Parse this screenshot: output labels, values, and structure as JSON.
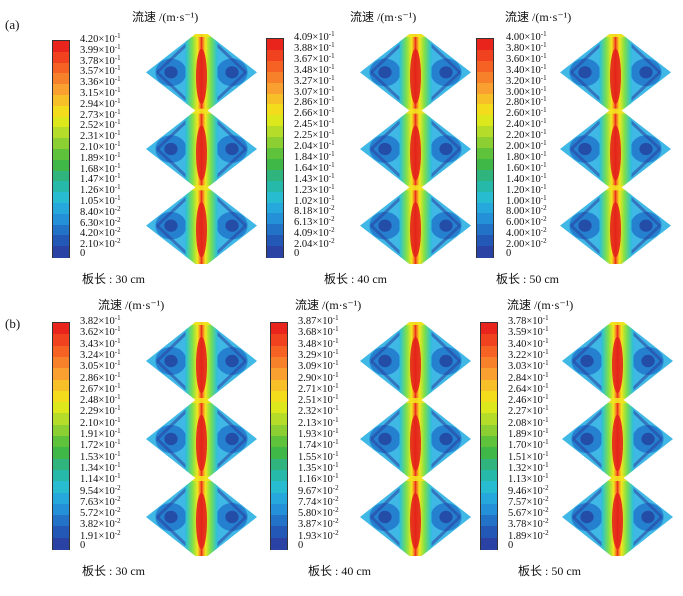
{
  "rows": [
    {
      "tag": "(a)",
      "panels": [
        {
          "unit_label": "流速 /(m·s⁻¹)",
          "caption": "板长 : 30 cm",
          "ticks": [
            {
              "m": "4.20",
              "e": "-1"
            },
            {
              "m": "3.99",
              "e": "-1"
            },
            {
              "m": "3.78",
              "e": "-1"
            },
            {
              "m": "3.57",
              "e": "-1"
            },
            {
              "m": "3.36",
              "e": "-1"
            },
            {
              "m": "3.15",
              "e": "-1"
            },
            {
              "m": "2.94",
              "e": "-1"
            },
            {
              "m": "2.73",
              "e": "-1"
            },
            {
              "m": "2.52",
              "e": "-1"
            },
            {
              "m": "2.31",
              "e": "-1"
            },
            {
              "m": "2.10",
              "e": "-1"
            },
            {
              "m": "1.89",
              "e": "-1"
            },
            {
              "m": "1.68",
              "e": "-1"
            },
            {
              "m": "1.47",
              "e": "-1"
            },
            {
              "m": "1.26",
              "e": "-1"
            },
            {
              "m": "1.05",
              "e": "-1"
            },
            {
              "m": "8.40",
              "e": "-2"
            },
            {
              "m": "6.30",
              "e": "-2"
            },
            {
              "m": "4.20",
              "e": "-2"
            },
            {
              "m": "2.10",
              "e": "-2"
            },
            {
              "m": "0",
              "e": ""
            }
          ]
        },
        {
          "unit_label": "流速 /(m·s⁻¹)",
          "caption": "板长 : 40 cm",
          "ticks": [
            {
              "m": "4.09",
              "e": "-1"
            },
            {
              "m": "3.88",
              "e": "-1"
            },
            {
              "m": "3.67",
              "e": "-1"
            },
            {
              "m": "3.48",
              "e": "-1"
            },
            {
              "m": "3.27",
              "e": "-1"
            },
            {
              "m": "3.07",
              "e": "-1"
            },
            {
              "m": "2.86",
              "e": "-1"
            },
            {
              "m": "2.66",
              "e": "-1"
            },
            {
              "m": "2.45",
              "e": "-1"
            },
            {
              "m": "2.25",
              "e": "-1"
            },
            {
              "m": "2.04",
              "e": "-1"
            },
            {
              "m": "1.84",
              "e": "-1"
            },
            {
              "m": "1.64",
              "e": "-1"
            },
            {
              "m": "1.43",
              "e": "-1"
            },
            {
              "m": "1.23",
              "e": "-1"
            },
            {
              "m": "1.02",
              "e": "-1"
            },
            {
              "m": "8.18",
              "e": "-2"
            },
            {
              "m": "6.13",
              "e": "-2"
            },
            {
              "m": "4.09",
              "e": "-2"
            },
            {
              "m": "2.04",
              "e": "-2"
            },
            {
              "m": "0",
              "e": ""
            }
          ]
        },
        {
          "unit_label": "流速 /(m·s⁻¹)",
          "caption": "板长 : 50 cm",
          "ticks": [
            {
              "m": "4.00",
              "e": "-1"
            },
            {
              "m": "3.80",
              "e": "-1"
            },
            {
              "m": "3.60",
              "e": "-1"
            },
            {
              "m": "3.40",
              "e": "-1"
            },
            {
              "m": "3.20",
              "e": "-1"
            },
            {
              "m": "3.00",
              "e": "-1"
            },
            {
              "m": "2.80",
              "e": "-1"
            },
            {
              "m": "2.60",
              "e": "-1"
            },
            {
              "m": "2.40",
              "e": "-1"
            },
            {
              "m": "2.20",
              "e": "-1"
            },
            {
              "m": "2.00",
              "e": "-1"
            },
            {
              "m": "1.80",
              "e": "-1"
            },
            {
              "m": "1.60",
              "e": "-1"
            },
            {
              "m": "1.40",
              "e": "-1"
            },
            {
              "m": "1.20",
              "e": "-1"
            },
            {
              "m": "1.00",
              "e": "-1"
            },
            {
              "m": "8.00",
              "e": "-2"
            },
            {
              "m": "6.00",
              "e": "-2"
            },
            {
              "m": "4.00",
              "e": "-2"
            },
            {
              "m": "2.00",
              "e": "-2"
            },
            {
              "m": "0",
              "e": ""
            }
          ]
        }
      ]
    },
    {
      "tag": "(b)",
      "panels": [
        {
          "unit_label": "流速 /(m·s⁻¹)",
          "caption": "板长 : 30 cm",
          "ticks": [
            {
              "m": "3.82",
              "e": "-1"
            },
            {
              "m": "3.62",
              "e": "-1"
            },
            {
              "m": "3.43",
              "e": "-1"
            },
            {
              "m": "3.24",
              "e": "-1"
            },
            {
              "m": "3.05",
              "e": "-1"
            },
            {
              "m": "2.86",
              "e": "-1"
            },
            {
              "m": "2.67",
              "e": "-1"
            },
            {
              "m": "2.48",
              "e": "-1"
            },
            {
              "m": "2.29",
              "e": "-1"
            },
            {
              "m": "2.10",
              "e": "-1"
            },
            {
              "m": "1.91",
              "e": "-1"
            },
            {
              "m": "1.72",
              "e": "-1"
            },
            {
              "m": "1.53",
              "e": "-1"
            },
            {
              "m": "1.34",
              "e": "-1"
            },
            {
              "m": "1.14",
              "e": "-1"
            },
            {
              "m": "9.54",
              "e": "-2"
            },
            {
              "m": "7.63",
              "e": "-2"
            },
            {
              "m": "5.72",
              "e": "-2"
            },
            {
              "m": "3.82",
              "e": "-2"
            },
            {
              "m": "1.91",
              "e": "-2"
            },
            {
              "m": "0",
              "e": ""
            }
          ]
        },
        {
          "unit_label": "流速 /(m·s⁻¹)",
          "caption": "板长 : 40 cm",
          "ticks": [
            {
              "m": "3.87",
              "e": "-1"
            },
            {
              "m": "3.68",
              "e": "-1"
            },
            {
              "m": "3.48",
              "e": "-1"
            },
            {
              "m": "3.29",
              "e": "-1"
            },
            {
              "m": "3.09",
              "e": "-1"
            },
            {
              "m": "2.90",
              "e": "-1"
            },
            {
              "m": "2.71",
              "e": "-1"
            },
            {
              "m": "2.51",
              "e": "-1"
            },
            {
              "m": "2.32",
              "e": "-1"
            },
            {
              "m": "2.13",
              "e": "-1"
            },
            {
              "m": "1.93",
              "e": "-1"
            },
            {
              "m": "1.74",
              "e": "-1"
            },
            {
              "m": "1.55",
              "e": "-1"
            },
            {
              "m": "1.35",
              "e": "-1"
            },
            {
              "m": "1.16",
              "e": "-1"
            },
            {
              "m": "9.67",
              "e": "-2"
            },
            {
              "m": "7.74",
              "e": "-2"
            },
            {
              "m": "5.80",
              "e": "-2"
            },
            {
              "m": "3.87",
              "e": "-2"
            },
            {
              "m": "1.93",
              "e": "-2"
            },
            {
              "m": "0",
              "e": ""
            }
          ]
        },
        {
          "unit_label": "流速 /(m·s⁻¹)",
          "caption": "板长 : 50 cm",
          "ticks": [
            {
              "m": "3.78",
              "e": "-1"
            },
            {
              "m": "3.59",
              "e": "-1"
            },
            {
              "m": "3.40",
              "e": "-1"
            },
            {
              "m": "3.22",
              "e": "-1"
            },
            {
              "m": "3.03",
              "e": "-1"
            },
            {
              "m": "2.84",
              "e": "-1"
            },
            {
              "m": "2.64",
              "e": "-1"
            },
            {
              "m": "2.46",
              "e": "-1"
            },
            {
              "m": "2.27",
              "e": "-1"
            },
            {
              "m": "2.08",
              "e": "-1"
            },
            {
              "m": "1.89",
              "e": "-1"
            },
            {
              "m": "1.70",
              "e": "-1"
            },
            {
              "m": "1.51",
              "e": "-1"
            },
            {
              "m": "1.32",
              "e": "-1"
            },
            {
              "m": "1.13",
              "e": "-1"
            },
            {
              "m": "9.46",
              "e": "-2"
            },
            {
              "m": "7.57",
              "e": "-2"
            },
            {
              "m": "5.67",
              "e": "-2"
            },
            {
              "m": "3.78",
              "e": "-2"
            },
            {
              "m": "1.89",
              "e": "-2"
            },
            {
              "m": "0",
              "e": ""
            }
          ]
        }
      ]
    }
  ],
  "colormap": [
    "#e8241c",
    "#f0421e",
    "#f56224",
    "#f7802a",
    "#f9a030",
    "#f8c028",
    "#f2dc1c",
    "#dce81c",
    "#b4dc28",
    "#8ccf32",
    "#5ec23a",
    "#40b848",
    "#2eb47c",
    "#26b8a8",
    "#28bcd0",
    "#26a8dc",
    "#2390d8",
    "#2272c8",
    "#2458b6",
    "#2a42a4"
  ]
}
